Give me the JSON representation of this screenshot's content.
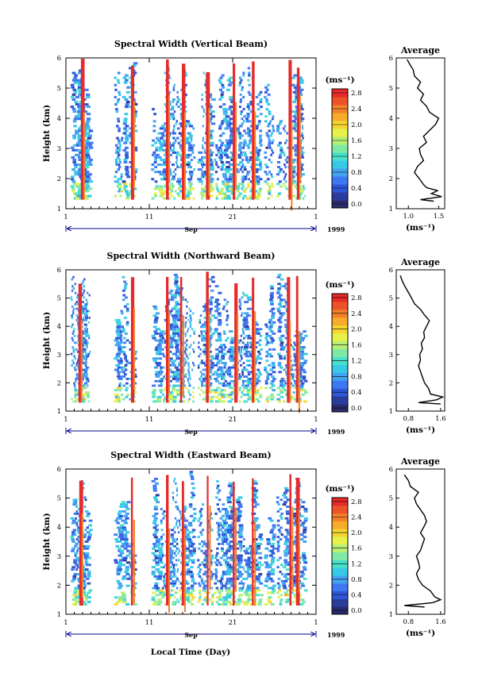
{
  "figure": {
    "xlabel": "Local Time (Day)",
    "month_label": "Sep",
    "year_label": "1999",
    "cbar_unit": "(ms⁻¹)",
    "avg_xunit": "(ms⁻¹)",
    "ylabel": "Height (km)"
  },
  "colors": {
    "scale": [
      "#2a2a6e",
      "#2b3d9c",
      "#2f56d6",
      "#3d78f2",
      "#43a3ef",
      "#38c9e6",
      "#48e0cb",
      "#7ee8a6",
      "#b5ef74",
      "#e6f24a",
      "#f6d531",
      "#f7ab2a",
      "#f3802a",
      "#ee5228",
      "#e72a2a"
    ],
    "profile_line": "#000000"
  },
  "chart_data": [
    {
      "type": "heatmap",
      "title": "Spectral Width (Vertical Beam)",
      "x_ticks": [
        "1",
        "11",
        "21",
        "1"
      ],
      "y_ticks": [
        "1",
        "2",
        "3",
        "4",
        "5",
        "6"
      ],
      "ylim": [
        1,
        6
      ],
      "colorbar": {
        "ticks": [
          "0.0",
          "0.4",
          "0.8",
          "1.2",
          "1.6",
          "2.0",
          "2.4",
          "2.8"
        ],
        "range": [
          0,
          3.0
        ]
      },
      "average": {
        "title": "Average",
        "x_ticks": [
          "1.0",
          "1.5"
        ],
        "xlim": [
          0.8,
          1.6
        ],
        "height_km": [
          1.25,
          1.3,
          1.4,
          1.5,
          1.6,
          1.7,
          1.8,
          2.0,
          2.2,
          2.4,
          2.6,
          2.8,
          3.0,
          3.2,
          3.4,
          3.6,
          3.8,
          4.0,
          4.2,
          4.4,
          4.6,
          4.8,
          5.0,
          5.2,
          5.4,
          5.6,
          5.8,
          5.95
        ],
        "width": [
          1.42,
          1.2,
          1.55,
          1.38,
          1.48,
          1.3,
          1.25,
          1.18,
          1.1,
          1.15,
          1.25,
          1.2,
          1.18,
          1.3,
          1.25,
          1.35,
          1.45,
          1.5,
          1.35,
          1.3,
          1.2,
          1.25,
          1.15,
          1.2,
          1.1,
          1.08,
          1.02,
          0.98
        ]
      },
      "seed": 11,
      "bursts": [
        2.8,
        8.8,
        13.0,
        14.9,
        17.8,
        21.0,
        23.3,
        27.7,
        28.7
      ]
    },
    {
      "type": "heatmap",
      "title": "Spectral Width (Northward Beam)",
      "x_ticks": [
        "1",
        "11",
        "21",
        "1"
      ],
      "y_ticks": [
        "1",
        "2",
        "3",
        "4",
        "5",
        "6"
      ],
      "ylim": [
        1,
        6
      ],
      "colorbar": {
        "ticks": [
          "0.0",
          "0.4",
          "0.8",
          "1.2",
          "1.6",
          "2.0",
          "2.4",
          "2.8"
        ],
        "range": [
          0,
          3.0
        ]
      },
      "average": {
        "title": "Average",
        "x_ticks": [
          "0.8",
          "1.6"
        ],
        "xlim": [
          0.5,
          1.7
        ],
        "height_km": [
          1.25,
          1.3,
          1.4,
          1.5,
          1.6,
          1.8,
          2.0,
          2.2,
          2.4,
          2.6,
          2.8,
          3.0,
          3.2,
          3.4,
          3.6,
          3.8,
          4.0,
          4.2,
          4.4,
          4.6,
          4.8,
          5.0,
          5.2,
          5.4,
          5.6,
          5.8
        ],
        "width": [
          1.6,
          1.05,
          1.5,
          1.65,
          1.35,
          1.3,
          1.2,
          1.15,
          1.1,
          1.05,
          1.1,
          1.08,
          1.15,
          1.12,
          1.2,
          1.18,
          1.25,
          1.32,
          1.2,
          1.1,
          0.95,
          0.88,
          0.8,
          0.72,
          0.65,
          0.6
        ]
      },
      "seed": 23,
      "bursts": [
        2.5,
        8.8,
        13.0,
        14.7,
        17.8,
        21.2,
        23.3,
        27.5,
        28.6
      ]
    },
    {
      "type": "heatmap",
      "title": "Spectral Width (Eastward Beam)",
      "x_ticks": [
        "1",
        "11",
        "21",
        "1"
      ],
      "y_ticks": [
        "1",
        "2",
        "3",
        "4",
        "5",
        "6"
      ],
      "ylim": [
        1,
        6
      ],
      "colorbar": {
        "ticks": [
          "0.0",
          "0.4",
          "0.8",
          "1.2",
          "1.6",
          "2.0",
          "2.4",
          "2.8"
        ],
        "range": [
          0,
          3.0
        ]
      },
      "average": {
        "title": "Average",
        "x_ticks": [
          "0.8",
          "1.6"
        ],
        "xlim": [
          0.5,
          1.7
        ],
        "height_km": [
          1.25,
          1.3,
          1.4,
          1.5,
          1.6,
          1.8,
          2.0,
          2.2,
          2.4,
          2.6,
          2.8,
          3.0,
          3.2,
          3.4,
          3.6,
          3.8,
          4.0,
          4.2,
          4.4,
          4.6,
          4.8,
          5.0,
          5.2,
          5.4,
          5.6,
          5.8
        ],
        "width": [
          1.2,
          0.7,
          1.4,
          1.6,
          1.45,
          1.35,
          1.15,
          1.05,
          1.0,
          1.08,
          1.05,
          1.0,
          1.1,
          1.15,
          1.2,
          1.1,
          1.18,
          1.25,
          1.2,
          1.1,
          1.0,
          0.95,
          1.05,
          0.85,
          0.8,
          0.7
        ]
      },
      "seed": 37,
      "bursts": [
        2.6,
        8.8,
        13.0,
        14.9,
        17.9,
        21.0,
        23.3,
        27.8,
        28.6
      ]
    }
  ]
}
